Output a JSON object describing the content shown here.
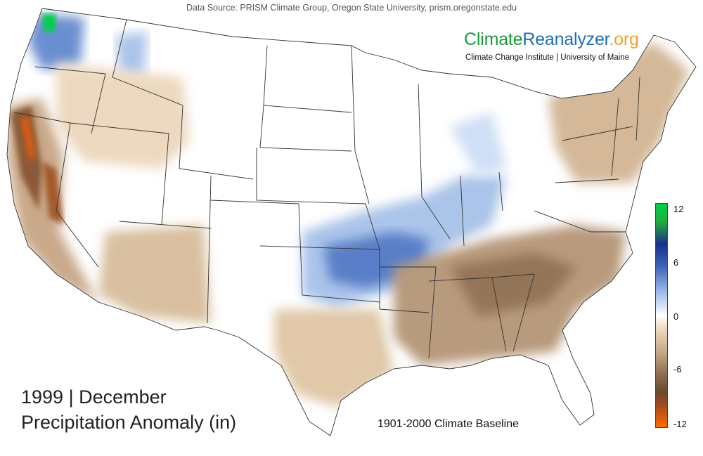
{
  "source": "Data Source: PRISM Climate Group, Oregon State University, prism.oregonstate.edu",
  "brand": {
    "climate": "Climate",
    "reanalyzer": "Reanalyzer",
    "org": ".org",
    "subtitle": "Climate Change Institute | University of Maine"
  },
  "title": {
    "period": "1999 | December",
    "variable": "Precipitation Anomaly (in)"
  },
  "baseline": "1901-2000 Climate Baseline",
  "legend": {
    "ticks": [
      "12",
      "6",
      "0",
      "-6",
      "-12"
    ],
    "colors": {
      "max": "#00d04a",
      "high": "#1a2f8c",
      "mid_high": "#6a8fd0",
      "light": "#d6e4f7",
      "zero": "#ffffff",
      "dry_light": "#ecd9bf",
      "dry": "#a88a6e",
      "dry_deep": "#6b4a34",
      "min": "#ff6a00"
    }
  }
}
